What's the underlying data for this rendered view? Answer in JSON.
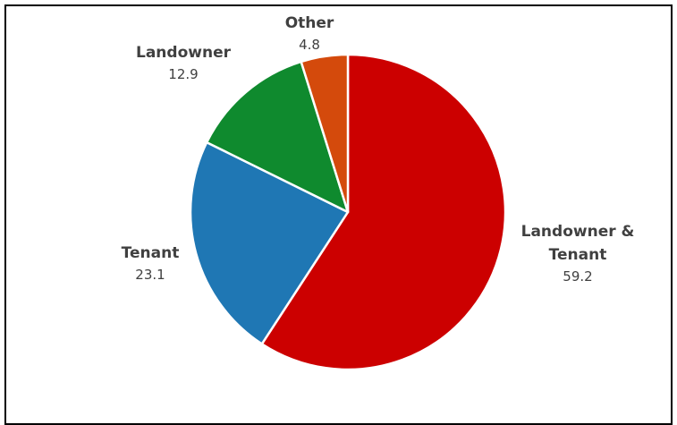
{
  "chart_data": {
    "type": "pie",
    "categories": [
      "Landowner & Tenant",
      "Tenant",
      "Landowner",
      "Other"
    ],
    "values": [
      59.2,
      23.1,
      12.9,
      4.8
    ],
    "value_labels": [
      "59.2",
      "23.1",
      "12.9",
      "4.8"
    ],
    "label_lines": [
      [
        "Landowner &",
        "Tenant"
      ],
      [
        "Tenant"
      ],
      [
        "Landowner"
      ],
      [
        "Other"
      ]
    ],
    "colors": [
      "#cc0000",
      "#1f77b4",
      "#0f8a2e",
      "#d44a0c"
    ],
    "start_angle_deg": 0,
    "direction": "clockwise",
    "slice_border": "#ffffff",
    "legend": "none",
    "title": ""
  }
}
